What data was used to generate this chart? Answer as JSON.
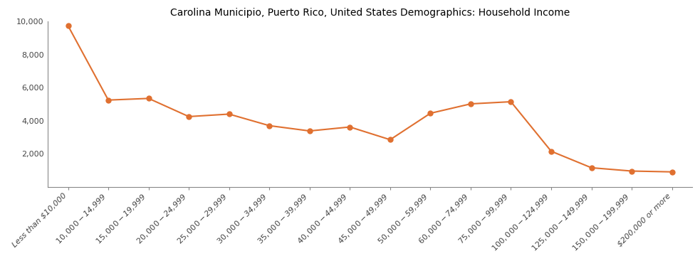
{
  "title": "Carolina Municipio, Puerto Rico, United States Demographics: Household Income",
  "categories": [
    "Less than $10,000",
    "$10,000 - $14,999",
    "$15,000 - $19,999",
    "$20,000 - $24,999",
    "$25,000 - $29,999",
    "$30,000 - $34,999",
    "$35,000 - $39,999",
    "$40,000 - $44,999",
    "$45,000 - $49,999",
    "$50,000 - $59,999",
    "$60,000 - $74,999",
    "$75,000 - $99,999",
    "$100,000 - $124,999",
    "$125,000 - $149,999",
    "$150,000 - $199,999",
    "$200,000 or more"
  ],
  "values": [
    9750,
    5250,
    5350,
    4250,
    4400,
    3700,
    3380,
    3620,
    2850,
    4450,
    5020,
    5150,
    2150,
    1150,
    950,
    900
  ],
  "line_color": "#E07030",
  "marker_color": "#E07030",
  "marker_style": "o",
  "marker_size": 5,
  "line_width": 1.5,
  "ylim": [
    0,
    10000
  ],
  "yticks": [
    2000,
    4000,
    6000,
    8000,
    10000
  ],
  "ytick_labels": [
    "2,000",
    "4,000",
    "6,000",
    "8,000",
    "10,000"
  ],
  "background_color": "#ffffff",
  "title_fontsize": 10,
  "tick_fontsize": 8,
  "figsize": [
    9.83,
    3.67
  ],
  "dpi": 100,
  "spine_color": "#888888",
  "tick_color": "#444444"
}
